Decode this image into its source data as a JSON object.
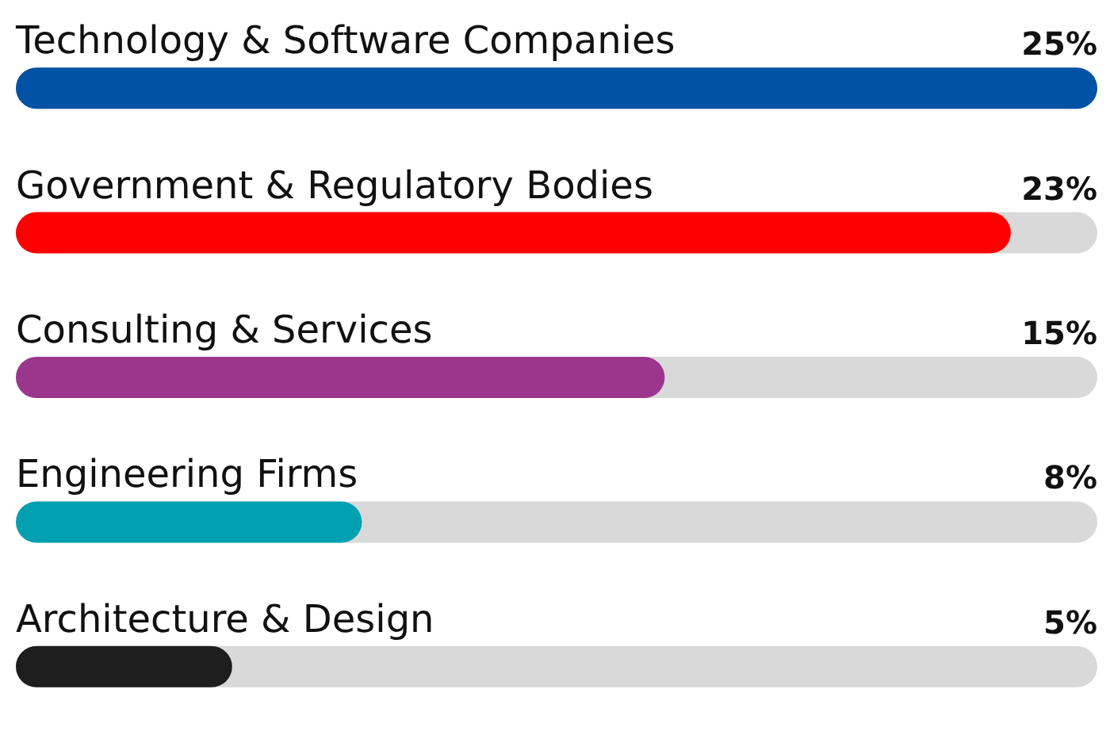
{
  "chart_data": {
    "type": "bar",
    "orientation": "horizontal",
    "tick_labels": "y",
    "categories": [
      "Technology & Software Companies",
      "Government & Regulatory Bodies",
      "Consulting & Services",
      "Engineering Firms",
      "Architecture & Design"
    ],
    "values": [
      25,
      23,
      15,
      8,
      5
    ],
    "value_labels": [
      "25%",
      "23%",
      "15%",
      "8%",
      "5%"
    ],
    "colors": [
      "#0052a5",
      "#ff0000",
      "#9c368c",
      "#00a0b0",
      "#1e1e1e"
    ]
  }
}
